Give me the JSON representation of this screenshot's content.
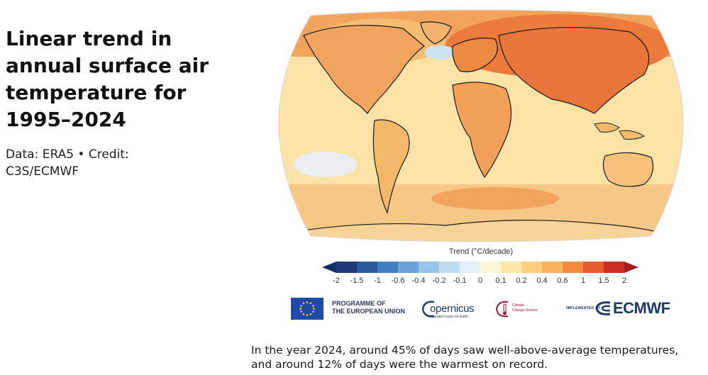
{
  "title": "Linear trend in annual surface air temperature for 1995–2024",
  "credit": "Data: ERA5 • Credit: C3S/ECMWF",
  "legend": {
    "title": "Trend (°C/decade)",
    "ticks": [
      "-2",
      "-1.5",
      "-1",
      "-0.6",
      "-0.4",
      "-0.2",
      "-0.1",
      "0",
      "0.1",
      "0.2",
      "0.4",
      "0.6",
      "1",
      "1.5",
      "2"
    ],
    "colors": [
      "#1b3a7a",
      "#2c5aa0",
      "#3f7fc4",
      "#6aa4d8",
      "#96c4e6",
      "#bddcf0",
      "#e2eff7",
      "#fdf6d3",
      "#fde7a6",
      "#fcd07c",
      "#f9b15a",
      "#f38a3c",
      "#e65b2b",
      "#cc2e22"
    ],
    "extend_low_color": "#142d66",
    "extend_high_color": "#a11d1d"
  },
  "logos": {
    "eu_line1": "PROGRAMME OF",
    "eu_line2": "THE EUROPEAN UNION",
    "copernicus": "opernicus",
    "copernicus_sub": "Europe's eyes on Earth",
    "c3s": "Climate\nChange Service",
    "implemented": "IMPLEMENTED BY",
    "ecmwf": "ECMWF"
  },
  "caption": "In the year 2024, around 45% of days saw well-above-average temperatures, and around 12% of days were the warmest on record.",
  "map": {
    "ocean_color": "#fbe3a8",
    "land_color": "#f4b86a",
    "hot_color": "#ec7a3a",
    "cold_color": "#c9e3f0",
    "coast_color": "#1a1a1a"
  }
}
